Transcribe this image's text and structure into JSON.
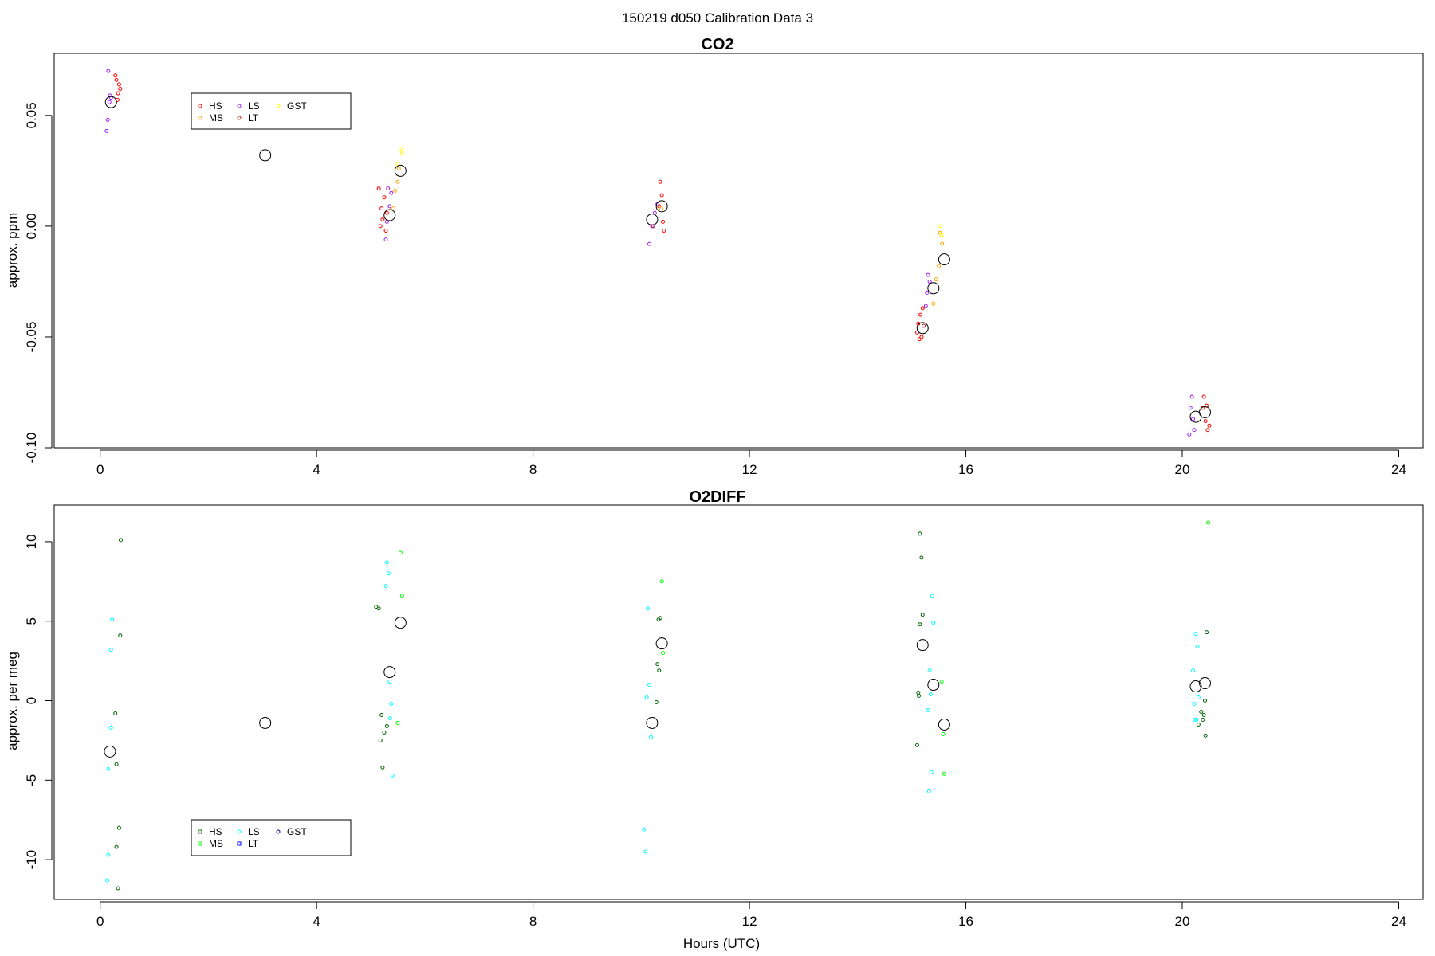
{
  "suptitle": "150219   d050   Calibration Data 3",
  "xlabel": "Hours (UTC)",
  "chart_data": [
    {
      "type": "scatter",
      "title": "CO2",
      "xlabel": "",
      "ylabel": "approx. ppm",
      "xlim": [
        -0.85,
        24.45
      ],
      "ylim": [
        -0.1,
        0.078
      ],
      "xticks": [
        0,
        4,
        8,
        12,
        16,
        20,
        24
      ],
      "yticks": [
        0.05,
        0.0,
        -0.05,
        -0.1
      ],
      "ytick_labels": [
        "0.05",
        "0.00",
        "-0.05",
        "-0.10"
      ],
      "legend": {
        "placement": "top-left",
        "entries": [
          {
            "name": "HS",
            "color": "#ff0000"
          },
          {
            "name": "MS",
            "color": "#ffa500"
          },
          {
            "name": "LS",
            "color": "#a020f0"
          },
          {
            "name": "LT",
            "color": "#b22222"
          },
          {
            "name": "GST",
            "color": "#ffff00"
          }
        ]
      },
      "series": [
        {
          "name": "HS",
          "color": "#ff0000",
          "points": [
            [
              0.3,
              0.066
            ],
            [
              0.33,
              0.06
            ],
            [
              0.35,
              0.064
            ],
            [
              0.32,
              0.057
            ],
            [
              0.28,
              0.068
            ],
            [
              0.37,
              0.062
            ],
            [
              5.15,
              0.017
            ],
            [
              5.25,
              0.013
            ],
            [
              5.2,
              0.008
            ],
            [
              5.22,
              0.003
            ],
            [
              5.18,
              0.0
            ],
            [
              5.28,
              -0.002
            ],
            [
              5.3,
              0.006
            ],
            [
              10.35,
              0.02
            ],
            [
              10.38,
              0.014
            ],
            [
              10.4,
              0.002
            ],
            [
              10.42,
              -0.002
            ],
            [
              10.33,
              0.009
            ],
            [
              15.1,
              -0.048
            ],
            [
              15.14,
              -0.051
            ],
            [
              15.18,
              -0.05
            ],
            [
              15.12,
              -0.044
            ],
            [
              15.2,
              -0.037
            ],
            [
              15.16,
              -0.04
            ],
            [
              20.4,
              -0.077
            ],
            [
              20.45,
              -0.081
            ],
            [
              20.43,
              -0.088
            ],
            [
              20.47,
              -0.092
            ],
            [
              20.5,
              -0.09
            ],
            [
              20.38,
              -0.082
            ]
          ]
        },
        {
          "name": "MS",
          "color": "#ffa500",
          "points": [
            [
              5.45,
              0.016
            ],
            [
              5.5,
              0.02
            ],
            [
              5.52,
              0.026
            ],
            [
              5.42,
              0.008
            ],
            [
              15.52,
              -0.003
            ],
            [
              15.56,
              -0.008
            ],
            [
              15.5,
              -0.018
            ],
            [
              15.45,
              -0.024
            ],
            [
              15.4,
              -0.035
            ],
            [
              10.37,
              0.008
            ]
          ]
        },
        {
          "name": "LS",
          "color": "#a020f0",
          "points": [
            [
              0.15,
              0.07
            ],
            [
              0.18,
              0.059
            ],
            [
              0.2,
              0.058
            ],
            [
              0.14,
              0.048
            ],
            [
              0.12,
              0.043
            ],
            [
              0.17,
              0.056
            ],
            [
              5.32,
              0.017
            ],
            [
              5.35,
              0.009
            ],
            [
              5.3,
              0.002
            ],
            [
              5.28,
              -0.006
            ],
            [
              5.38,
              0.015
            ],
            [
              10.15,
              -0.008
            ],
            [
              10.2,
              0.0
            ],
            [
              10.25,
              0.006
            ],
            [
              10.3,
              0.01
            ],
            [
              15.3,
              -0.022
            ],
            [
              15.33,
              -0.025
            ],
            [
              15.28,
              -0.03
            ],
            [
              15.26,
              -0.036
            ],
            [
              20.15,
              -0.082
            ],
            [
              20.18,
              -0.077
            ],
            [
              20.13,
              -0.094
            ],
            [
              20.2,
              -0.087
            ],
            [
              20.22,
              -0.092
            ]
          ]
        },
        {
          "name": "LT",
          "color": "#b22222",
          "points": [
            [
              10.22,
              0.0
            ],
            [
              15.22,
              -0.045
            ]
          ]
        },
        {
          "name": "GST",
          "color": "#ffff00",
          "points": [
            [
              5.55,
              0.035
            ],
            [
              5.58,
              0.033
            ],
            [
              15.53,
              0.0
            ],
            [
              15.55,
              -0.004
            ],
            [
              5.5,
              0.028
            ]
          ]
        },
        {
          "name": "",
          "color": "#000000",
          "marker": "large-circle",
          "points": [
            [
              0.2,
              0.056
            ],
            [
              3.05,
              0.032
            ],
            [
              5.35,
              0.005
            ],
            [
              5.55,
              0.025
            ],
            [
              10.2,
              0.003
            ],
            [
              10.38,
              0.009
            ],
            [
              15.2,
              -0.046
            ],
            [
              15.4,
              -0.028
            ],
            [
              15.6,
              -0.015
            ],
            [
              20.25,
              -0.086
            ],
            [
              20.42,
              -0.084
            ]
          ]
        }
      ]
    },
    {
      "type": "scatter",
      "title": "O2DIFF",
      "xlabel": "Hours (UTC)",
      "ylabel": "approx. per meg",
      "xlim": [
        -0.85,
        24.45
      ],
      "ylim": [
        -12.5,
        12.3
      ],
      "xticks": [
        0,
        4,
        8,
        12,
        16,
        20,
        24
      ],
      "yticks": [
        10,
        5,
        0,
        -5,
        -10
      ],
      "ytick_labels": [
        "10",
        "5",
        "0",
        "-5",
        "-10"
      ],
      "legend": {
        "placement": "bottom-left",
        "entries": [
          {
            "name": "HS",
            "color": "#006400"
          },
          {
            "name": "MS",
            "color": "#00ff00"
          },
          {
            "name": "LS",
            "color": "#00ffff"
          },
          {
            "name": "LT",
            "color": "#0000ff"
          },
          {
            "name": "GST",
            "color": "#00008b"
          }
        ]
      },
      "series": [
        {
          "name": "HS",
          "color": "#006400",
          "points": [
            [
              0.38,
              10.1
            ],
            [
              0.37,
              4.1
            ],
            [
              0.28,
              -0.8
            ],
            [
              0.3,
              -4.0
            ],
            [
              0.35,
              -8.0
            ],
            [
              0.3,
              -9.2
            ],
            [
              0.33,
              -11.8
            ],
            [
              5.1,
              5.9
            ],
            [
              5.15,
              5.8
            ],
            [
              5.2,
              -0.9
            ],
            [
              5.25,
              -2.0
            ],
            [
              5.18,
              -2.5
            ],
            [
              5.22,
              -4.2
            ],
            [
              5.3,
              -1.6
            ],
            [
              10.32,
              5.1
            ],
            [
              10.35,
              5.2
            ],
            [
              10.3,
              2.3
            ],
            [
              10.33,
              1.9
            ],
            [
              10.28,
              -0.1
            ],
            [
              15.15,
              10.5
            ],
            [
              15.18,
              9.0
            ],
            [
              15.2,
              5.4
            ],
            [
              15.15,
              4.8
            ],
            [
              15.12,
              0.5
            ],
            [
              15.13,
              0.3
            ],
            [
              15.1,
              -2.8
            ],
            [
              20.35,
              -0.7
            ],
            [
              20.38,
              -1.2
            ],
            [
              20.4,
              -0.9
            ],
            [
              20.42,
              0.0
            ],
            [
              20.45,
              4.3
            ],
            [
              20.43,
              -2.2
            ],
            [
              20.3,
              -1.5
            ]
          ]
        },
        {
          "name": "MS",
          "color": "#00ff00",
          "points": [
            [
              5.55,
              9.3
            ],
            [
              5.58,
              6.6
            ],
            [
              5.5,
              -1.4
            ],
            [
              10.38,
              7.5
            ],
            [
              10.4,
              3.0
            ],
            [
              15.55,
              1.2
            ],
            [
              15.58,
              -2.1
            ],
            [
              15.6,
              -4.6
            ],
            [
              20.48,
              11.2
            ]
          ]
        },
        {
          "name": "LS",
          "color": "#00ffff",
          "points": [
            [
              0.22,
              5.1
            ],
            [
              0.2,
              3.2
            ],
            [
              0.2,
              -1.7
            ],
            [
              0.15,
              -4.3
            ],
            [
              0.15,
              -9.7
            ],
            [
              0.13,
              -11.3
            ],
            [
              5.3,
              8.7
            ],
            [
              5.33,
              8.0
            ],
            [
              5.28,
              7.2
            ],
            [
              5.35,
              1.2
            ],
            [
              5.38,
              -0.2
            ],
            [
              5.36,
              -1.1
            ],
            [
              5.4,
              -4.7
            ],
            [
              10.12,
              5.8
            ],
            [
              10.15,
              1.0
            ],
            [
              10.1,
              0.2
            ],
            [
              10.18,
              -2.3
            ],
            [
              10.05,
              -8.1
            ],
            [
              10.08,
              -9.5
            ],
            [
              15.38,
              6.6
            ],
            [
              15.4,
              4.9
            ],
            [
              15.33,
              1.9
            ],
            [
              15.35,
              0.4
            ],
            [
              15.3,
              -0.6
            ],
            [
              15.36,
              -4.5
            ],
            [
              15.32,
              -5.7
            ],
            [
              20.25,
              4.2
            ],
            [
              20.28,
              3.4
            ],
            [
              20.2,
              1.9
            ],
            [
              20.22,
              -0.2
            ],
            [
              20.3,
              0.2
            ],
            [
              20.23,
              -1.2
            ],
            [
              20.26,
              -1.2
            ]
          ]
        },
        {
          "name": "",
          "color": "#000000",
          "marker": "large-circle",
          "points": [
            [
              0.18,
              -3.2
            ],
            [
              3.05,
              -1.4
            ],
            [
              5.35,
              1.8
            ],
            [
              5.55,
              4.9
            ],
            [
              10.2,
              -1.4
            ],
            [
              10.38,
              3.6
            ],
            [
              15.2,
              3.5
            ],
            [
              15.4,
              1.0
            ],
            [
              15.6,
              -1.5
            ],
            [
              20.25,
              0.9
            ],
            [
              20.42,
              1.1
            ]
          ]
        }
      ]
    }
  ]
}
